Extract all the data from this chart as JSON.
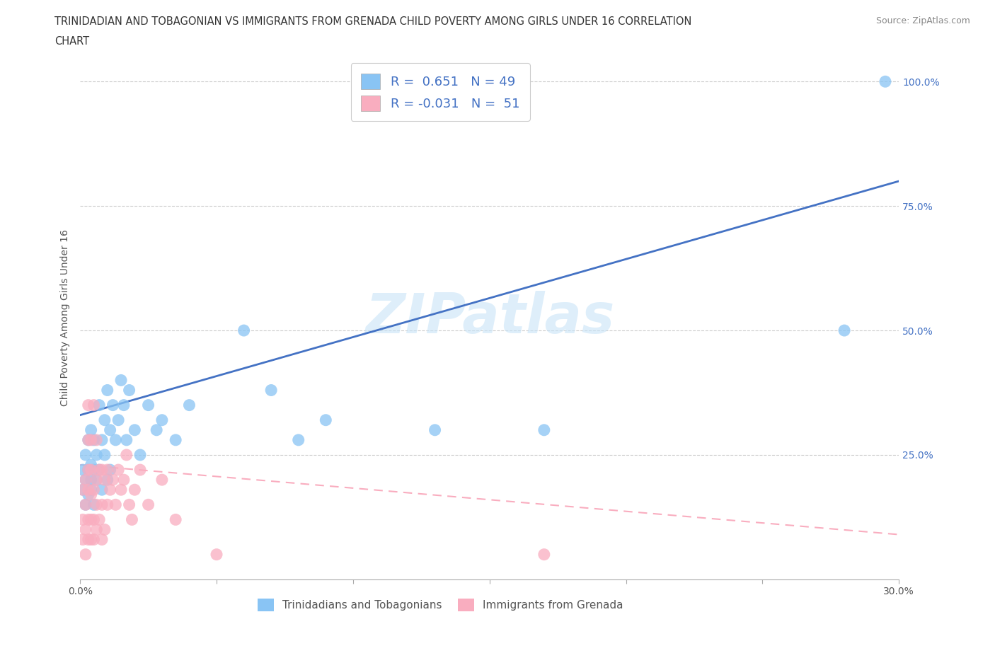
{
  "title_line1": "TRINIDADIAN AND TOBAGONIAN VS IMMIGRANTS FROM GRENADA CHILD POVERTY AMONG GIRLS UNDER 16 CORRELATION",
  "title_line2": "CHART",
  "source": "Source: ZipAtlas.com",
  "ylabel": "Child Poverty Among Girls Under 16",
  "xlim": [
    0.0,
    0.3
  ],
  "ylim": [
    0.0,
    1.05
  ],
  "xticks": [
    0.0,
    0.05,
    0.1,
    0.15,
    0.2,
    0.25,
    0.3
  ],
  "ytick_positions": [
    0.0,
    0.25,
    0.5,
    0.75,
    1.0
  ],
  "ytick_labels": [
    "",
    "25.0%",
    "50.0%",
    "75.0%",
    "100.0%"
  ],
  "blue_color": "#89C4F4",
  "pink_color": "#F9ADBF",
  "blue_line_color": "#4472C4",
  "pink_line_color": "#F9ADBF",
  "R_blue": 0.651,
  "N_blue": 49,
  "R_pink": -0.031,
  "N_pink": 51,
  "watermark": "ZIPatlas",
  "title_fontsize": 11,
  "axis_label_fontsize": 10,
  "tick_fontsize": 10,
  "blue_line_x0": 0.0,
  "blue_line_y0": 0.33,
  "blue_line_x1": 0.3,
  "blue_line_y1": 0.8,
  "pink_line_x0": 0.0,
  "pink_line_y0": 0.23,
  "pink_line_x1": 0.3,
  "pink_line_y1": 0.09,
  "blue_scatter_x": [
    0.001,
    0.001,
    0.002,
    0.002,
    0.002,
    0.003,
    0.003,
    0.003,
    0.004,
    0.004,
    0.004,
    0.004,
    0.005,
    0.005,
    0.005,
    0.006,
    0.006,
    0.007,
    0.007,
    0.008,
    0.008,
    0.009,
    0.009,
    0.01,
    0.01,
    0.011,
    0.011,
    0.012,
    0.013,
    0.014,
    0.015,
    0.016,
    0.017,
    0.018,
    0.02,
    0.022,
    0.025,
    0.028,
    0.03,
    0.035,
    0.04,
    0.06,
    0.07,
    0.08,
    0.09,
    0.13,
    0.17,
    0.28,
    0.295
  ],
  "blue_scatter_y": [
    0.18,
    0.22,
    0.15,
    0.2,
    0.25,
    0.17,
    0.22,
    0.28,
    0.2,
    0.23,
    0.18,
    0.3,
    0.22,
    0.15,
    0.28,
    0.25,
    0.2,
    0.22,
    0.35,
    0.18,
    0.28,
    0.25,
    0.32,
    0.2,
    0.38,
    0.22,
    0.3,
    0.35,
    0.28,
    0.32,
    0.4,
    0.35,
    0.28,
    0.38,
    0.3,
    0.25,
    0.35,
    0.3,
    0.32,
    0.28,
    0.35,
    0.5,
    0.38,
    0.28,
    0.32,
    0.3,
    0.3,
    0.5,
    1.0
  ],
  "pink_scatter_x": [
    0.001,
    0.001,
    0.001,
    0.002,
    0.002,
    0.002,
    0.002,
    0.003,
    0.003,
    0.003,
    0.003,
    0.003,
    0.003,
    0.004,
    0.004,
    0.004,
    0.004,
    0.004,
    0.005,
    0.005,
    0.005,
    0.005,
    0.006,
    0.006,
    0.006,
    0.006,
    0.007,
    0.007,
    0.008,
    0.008,
    0.008,
    0.009,
    0.009,
    0.01,
    0.01,
    0.011,
    0.012,
    0.013,
    0.014,
    0.015,
    0.016,
    0.017,
    0.018,
    0.019,
    0.02,
    0.022,
    0.025,
    0.03,
    0.035,
    0.05,
    0.17
  ],
  "pink_scatter_y": [
    0.08,
    0.12,
    0.18,
    0.05,
    0.1,
    0.15,
    0.2,
    0.08,
    0.12,
    0.18,
    0.22,
    0.28,
    0.35,
    0.08,
    0.12,
    0.17,
    0.22,
    0.28,
    0.08,
    0.12,
    0.18,
    0.35,
    0.1,
    0.15,
    0.2,
    0.28,
    0.12,
    0.22,
    0.08,
    0.15,
    0.22,
    0.1,
    0.2,
    0.15,
    0.22,
    0.18,
    0.2,
    0.15,
    0.22,
    0.18,
    0.2,
    0.25,
    0.15,
    0.12,
    0.18,
    0.22,
    0.15,
    0.2,
    0.12,
    0.05,
    0.05
  ]
}
